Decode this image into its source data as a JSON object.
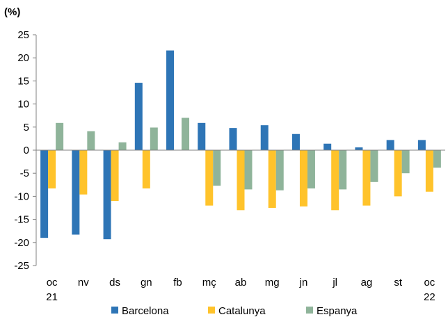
{
  "chart_data": {
    "type": "bar",
    "unit_label": "(%)",
    "title": "",
    "xlabel": "",
    "ylabel": "",
    "ylim": [
      -25,
      25
    ],
    "yticks": [
      25,
      20,
      15,
      10,
      5,
      0,
      -5,
      -10,
      -15,
      -20,
      -25
    ],
    "grid": false,
    "legend_position": "bottom",
    "categories": [
      [
        "oc",
        "21"
      ],
      [
        "nv",
        ""
      ],
      [
        "ds",
        ""
      ],
      [
        "gn",
        ""
      ],
      [
        "fb",
        ""
      ],
      [
        "mç",
        ""
      ],
      [
        "ab",
        ""
      ],
      [
        "mg",
        ""
      ],
      [
        "jn",
        ""
      ],
      [
        "jl",
        ""
      ],
      [
        "ag",
        ""
      ],
      [
        "st",
        ""
      ],
      [
        "oc",
        "22"
      ]
    ],
    "series": [
      {
        "name": "Barcelona",
        "color": "#2e75b6",
        "values": [
          -19.0,
          -18.3,
          -19.3,
          14.6,
          21.6,
          5.9,
          4.8,
          5.4,
          3.5,
          1.4,
          0.6,
          2.2,
          2.2
        ]
      },
      {
        "name": "Catalunya",
        "color": "#ffc32b",
        "values": [
          -8.3,
          -9.6,
          -11.0,
          -8.3,
          0.0,
          -12.0,
          -13.0,
          -12.5,
          -12.2,
          -13.0,
          -12.0,
          -10.0,
          -9.0
        ]
      },
      {
        "name": "Espanya",
        "color": "#8fb49a",
        "values": [
          5.9,
          4.1,
          1.7,
          4.9,
          7.0,
          -7.7,
          -8.5,
          -8.7,
          -8.3,
          -8.5,
          -6.9,
          -5.0,
          -3.8
        ]
      }
    ]
  }
}
